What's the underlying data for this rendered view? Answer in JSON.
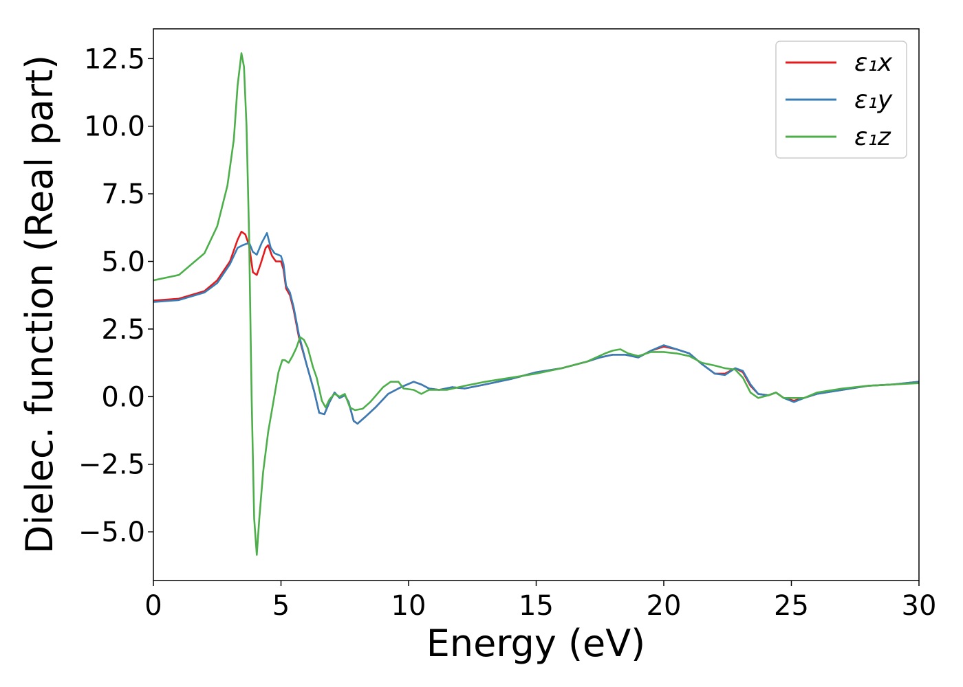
{
  "chart_data": {
    "type": "line",
    "title": "",
    "xlabel": "Energy (eV)",
    "ylabel": "Dielec. function (Real part)",
    "xlim": [
      0,
      30
    ],
    "ylim": [
      -6.8,
      13.6
    ],
    "xticks": [
      0,
      5,
      10,
      15,
      20,
      25,
      30
    ],
    "xtick_labels": [
      "0",
      "5",
      "10",
      "15",
      "20",
      "25",
      "30"
    ],
    "yticks": [
      -5.0,
      -2.5,
      0.0,
      2.5,
      5.0,
      7.5,
      10.0,
      12.5
    ],
    "ytick_labels": [
      "−5.0",
      "−2.5",
      "0.0",
      "2.5",
      "5.0",
      "7.5",
      "10.0",
      "12.5"
    ],
    "grid": false,
    "legend_position": "top-right",
    "series": [
      {
        "name": "ε₁x",
        "color": "#e41a1c",
        "points": [
          [
            0,
            3.55
          ],
          [
            1,
            3.62
          ],
          [
            2,
            3.9
          ],
          [
            2.5,
            4.3
          ],
          [
            3,
            5.0
          ],
          [
            3.3,
            5.8
          ],
          [
            3.45,
            6.1
          ],
          [
            3.6,
            6.0
          ],
          [
            3.75,
            5.6
          ],
          [
            3.9,
            4.6
          ],
          [
            4.05,
            4.5
          ],
          [
            4.2,
            4.9
          ],
          [
            4.4,
            5.5
          ],
          [
            4.5,
            5.6
          ],
          [
            4.65,
            5.2
          ],
          [
            4.8,
            5.0
          ],
          [
            5.0,
            5.0
          ],
          [
            5.1,
            4.7
          ],
          [
            5.2,
            4.0
          ],
          [
            5.35,
            3.75
          ],
          [
            5.5,
            3.2
          ],
          [
            5.7,
            2.2
          ],
          [
            6.0,
            1.2
          ],
          [
            6.3,
            0.2
          ],
          [
            6.5,
            -0.6
          ],
          [
            6.7,
            -0.65
          ],
          [
            6.9,
            -0.2
          ],
          [
            7.1,
            0.15
          ],
          [
            7.3,
            -0.05
          ],
          [
            7.5,
            0.05
          ],
          [
            7.65,
            -0.2
          ],
          [
            7.85,
            -0.9
          ],
          [
            8.0,
            -1.0
          ],
          [
            8.3,
            -0.75
          ],
          [
            8.7,
            -0.4
          ],
          [
            9.2,
            0.1
          ],
          [
            9.7,
            0.35
          ],
          [
            10.2,
            0.55
          ],
          [
            10.5,
            0.45
          ],
          [
            10.8,
            0.3
          ],
          [
            11.2,
            0.25
          ],
          [
            11.7,
            0.35
          ],
          [
            12.2,
            0.3
          ],
          [
            13,
            0.45
          ],
          [
            14,
            0.65
          ],
          [
            15,
            0.9
          ],
          [
            16,
            1.05
          ],
          [
            17,
            1.3
          ],
          [
            17.5,
            1.45
          ],
          [
            18,
            1.55
          ],
          [
            18.5,
            1.55
          ],
          [
            19,
            1.45
          ],
          [
            19.5,
            1.7
          ],
          [
            20,
            1.85
          ],
          [
            20.5,
            1.75
          ],
          [
            21,
            1.6
          ],
          [
            21.5,
            1.2
          ],
          [
            22,
            0.85
          ],
          [
            22.4,
            0.85
          ],
          [
            22.8,
            1.05
          ],
          [
            23.1,
            0.9
          ],
          [
            23.4,
            0.4
          ],
          [
            23.7,
            0.1
          ],
          [
            24.1,
            0.05
          ],
          [
            24.4,
            0.15
          ],
          [
            24.7,
            -0.05
          ],
          [
            25.1,
            -0.15
          ],
          [
            25.5,
            -0.05
          ],
          [
            26,
            0.1
          ],
          [
            27,
            0.25
          ],
          [
            28,
            0.4
          ],
          [
            29,
            0.45
          ],
          [
            30,
            0.55
          ]
        ]
      },
      {
        "name": "ε₁y",
        "color": "#377eb8",
        "points": [
          [
            0,
            3.5
          ],
          [
            1,
            3.57
          ],
          [
            2,
            3.85
          ],
          [
            2.5,
            4.2
          ],
          [
            3,
            4.9
          ],
          [
            3.3,
            5.5
          ],
          [
            3.5,
            5.6
          ],
          [
            3.65,
            5.65
          ],
          [
            3.75,
            5.7
          ],
          [
            3.9,
            5.35
          ],
          [
            4.05,
            5.25
          ],
          [
            4.25,
            5.7
          ],
          [
            4.45,
            6.05
          ],
          [
            4.6,
            5.5
          ],
          [
            4.75,
            5.3
          ],
          [
            5.0,
            5.2
          ],
          [
            5.1,
            4.9
          ],
          [
            5.2,
            4.1
          ],
          [
            5.35,
            3.85
          ],
          [
            5.5,
            3.3
          ],
          [
            5.7,
            2.3
          ],
          [
            6.0,
            1.2
          ],
          [
            6.3,
            0.2
          ],
          [
            6.5,
            -0.6
          ],
          [
            6.7,
            -0.65
          ],
          [
            6.9,
            -0.2
          ],
          [
            7.1,
            0.15
          ],
          [
            7.3,
            -0.05
          ],
          [
            7.5,
            0.05
          ],
          [
            7.65,
            -0.2
          ],
          [
            7.85,
            -0.9
          ],
          [
            8.0,
            -1.0
          ],
          [
            8.3,
            -0.75
          ],
          [
            8.7,
            -0.4
          ],
          [
            9.2,
            0.1
          ],
          [
            9.7,
            0.35
          ],
          [
            10.2,
            0.55
          ],
          [
            10.5,
            0.45
          ],
          [
            10.8,
            0.3
          ],
          [
            11.2,
            0.25
          ],
          [
            11.7,
            0.35
          ],
          [
            12.2,
            0.3
          ],
          [
            13,
            0.45
          ],
          [
            14,
            0.65
          ],
          [
            15,
            0.9
          ],
          [
            16,
            1.05
          ],
          [
            17,
            1.3
          ],
          [
            17.5,
            1.45
          ],
          [
            18,
            1.55
          ],
          [
            18.5,
            1.55
          ],
          [
            19,
            1.45
          ],
          [
            19.5,
            1.7
          ],
          [
            20,
            1.9
          ],
          [
            20.5,
            1.75
          ],
          [
            21,
            1.6
          ],
          [
            21.5,
            1.2
          ],
          [
            22,
            0.85
          ],
          [
            22.4,
            0.8
          ],
          [
            22.8,
            1.05
          ],
          [
            23.1,
            0.95
          ],
          [
            23.4,
            0.45
          ],
          [
            23.7,
            0.1
          ],
          [
            24.1,
            0.05
          ],
          [
            24.4,
            0.15
          ],
          [
            24.7,
            -0.05
          ],
          [
            25.1,
            -0.2
          ],
          [
            25.5,
            -0.05
          ],
          [
            26,
            0.1
          ],
          [
            27,
            0.25
          ],
          [
            28,
            0.4
          ],
          [
            29,
            0.45
          ],
          [
            30,
            0.55
          ]
        ]
      },
      {
        "name": "ε₁z",
        "color": "#4daf4a",
        "points": [
          [
            0,
            4.3
          ],
          [
            1,
            4.5
          ],
          [
            2,
            5.3
          ],
          [
            2.5,
            6.3
          ],
          [
            2.9,
            7.8
          ],
          [
            3.15,
            9.5
          ],
          [
            3.3,
            11.5
          ],
          [
            3.45,
            12.7
          ],
          [
            3.55,
            12.2
          ],
          [
            3.65,
            10.0
          ],
          [
            3.75,
            6.0
          ],
          [
            3.85,
            0.0
          ],
          [
            3.95,
            -4.5
          ],
          [
            4.05,
            -5.85
          ],
          [
            4.15,
            -4.5
          ],
          [
            4.3,
            -2.8
          ],
          [
            4.5,
            -1.3
          ],
          [
            4.7,
            -0.2
          ],
          [
            4.9,
            0.9
          ],
          [
            5.05,
            1.35
          ],
          [
            5.15,
            1.35
          ],
          [
            5.3,
            1.25
          ],
          [
            5.45,
            1.5
          ],
          [
            5.6,
            1.8
          ],
          [
            5.75,
            2.2
          ],
          [
            5.9,
            2.1
          ],
          [
            6.05,
            1.8
          ],
          [
            6.25,
            1.1
          ],
          [
            6.4,
            0.7
          ],
          [
            6.6,
            -0.15
          ],
          [
            6.75,
            -0.4
          ],
          [
            6.9,
            -0.1
          ],
          [
            7.1,
            0.1
          ],
          [
            7.3,
            0.0
          ],
          [
            7.5,
            0.1
          ],
          [
            7.7,
            -0.4
          ],
          [
            7.9,
            -0.5
          ],
          [
            8.2,
            -0.45
          ],
          [
            8.5,
            -0.2
          ],
          [
            9.0,
            0.35
          ],
          [
            9.3,
            0.55
          ],
          [
            9.6,
            0.55
          ],
          [
            9.8,
            0.3
          ],
          [
            10.2,
            0.25
          ],
          [
            10.5,
            0.1
          ],
          [
            10.8,
            0.25
          ],
          [
            11.5,
            0.25
          ],
          [
            12.2,
            0.4
          ],
          [
            13,
            0.55
          ],
          [
            14,
            0.7
          ],
          [
            15,
            0.85
          ],
          [
            16,
            1.05
          ],
          [
            17,
            1.3
          ],
          [
            17.7,
            1.6
          ],
          [
            18,
            1.7
          ],
          [
            18.3,
            1.75
          ],
          [
            18.6,
            1.6
          ],
          [
            19,
            1.5
          ],
          [
            19.5,
            1.65
          ],
          [
            20,
            1.65
          ],
          [
            20.5,
            1.6
          ],
          [
            21,
            1.5
          ],
          [
            21.5,
            1.25
          ],
          [
            22,
            1.15
          ],
          [
            22.4,
            1.05
          ],
          [
            22.8,
            1.0
          ],
          [
            23.1,
            0.7
          ],
          [
            23.4,
            0.15
          ],
          [
            23.7,
            -0.05
          ],
          [
            24.1,
            0.05
          ],
          [
            24.4,
            0.15
          ],
          [
            24.7,
            -0.05
          ],
          [
            25.1,
            -0.05
          ],
          [
            25.5,
            -0.05
          ],
          [
            26,
            0.15
          ],
          [
            27,
            0.3
          ],
          [
            28,
            0.4
          ],
          [
            29,
            0.45
          ],
          [
            30,
            0.5
          ]
        ]
      }
    ]
  }
}
